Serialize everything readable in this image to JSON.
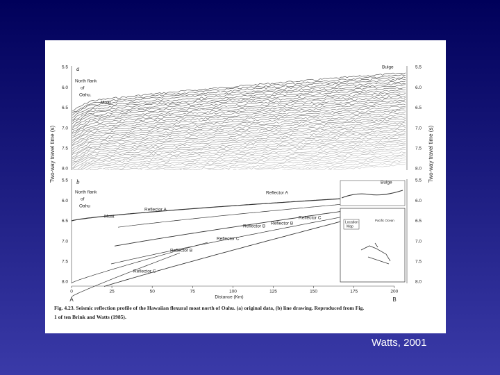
{
  "figure": {
    "panel_a": {
      "label": "a",
      "flank": [
        "North flank",
        "of",
        "Oahu."
      ],
      "moat": "Moat",
      "bulge": "Bulge"
    },
    "panel_b": {
      "label": "b",
      "flank": [
        "North flank",
        "of",
        "Oahu"
      ],
      "moat": "Moat",
      "bulge": "Bulge",
      "reflectors": [
        "Reflector A",
        "Reflector A",
        "Reflector B",
        "Reflector C",
        "Reflector B",
        "Reflector B",
        "Reflector C",
        "Reflector C"
      ],
      "map_title": [
        "Location",
        "Map"
      ],
      "map_ocean": "Pacific Ocean"
    },
    "y_label": "Two-way travel time (s)",
    "y2_label": "Two-way travel time (s)",
    "yticks_a": [
      "5.5",
      "6.0",
      "6.5",
      "7.0",
      "7.5",
      "8.0"
    ],
    "yticks_b": [
      "5.5",
      "6.0",
      "6.5",
      "7.0",
      "7.5",
      "8.0"
    ],
    "xticks": [
      "0",
      "25",
      "50",
      "75",
      "100",
      "125",
      "150",
      "175",
      "200"
    ],
    "x_label": "Distance (Km)",
    "end_left": "A",
    "end_right": "B",
    "caption": [
      "Fig. 4.23.  Seismic reflection profile of the Hawaiian flexural moat north of Oahu. (a) original data, (b) line drawing. Reproduced from Fig.",
      "1 of ten Brink and Watts (1985)."
    ]
  },
  "credit": "Watts, 2001"
}
